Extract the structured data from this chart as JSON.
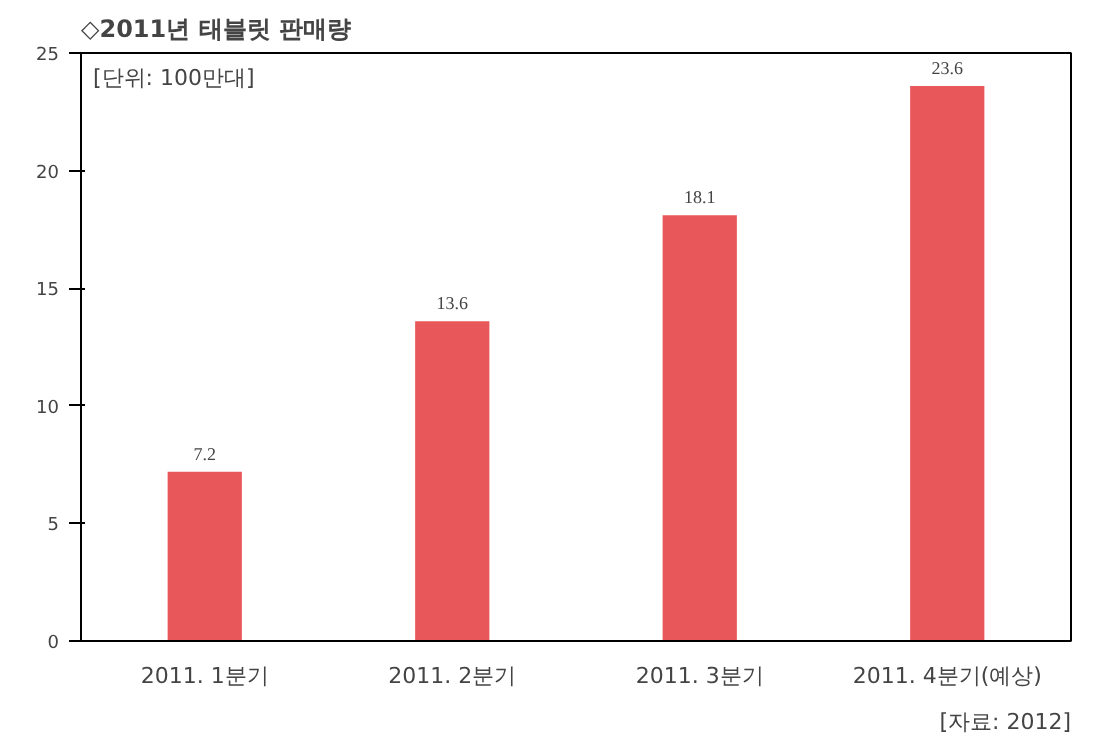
{
  "chart_data": {
    "type": "bar",
    "title": "◇2011년 태블릿 판매량",
    "categories": [
      "2011. 1분기",
      "2011. 2분기",
      "2011. 3분기",
      "2011. 4분기(예상)"
    ],
    "values": [
      7.2,
      13.6,
      18.1,
      23.6
    ],
    "color": "#e8585a",
    "data_labels": true,
    "ylim": [
      0,
      25
    ],
    "yticks": [
      0,
      5,
      10,
      15,
      20,
      25
    ],
    "grid": false,
    "annotations": [
      "[단위: 100만대]",
      "[자료: 2012]"
    ]
  }
}
